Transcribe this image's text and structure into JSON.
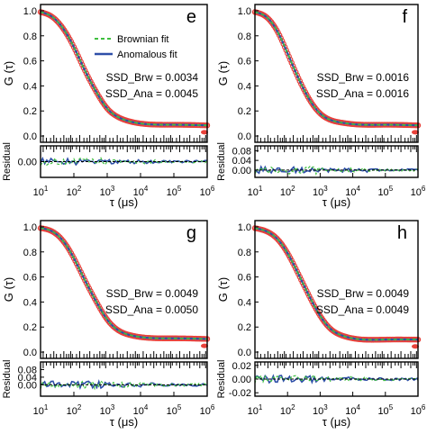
{
  "chart_data": [
    {
      "type": "line",
      "panel_label": "e",
      "legend": {
        "position": "top-right",
        "entries": [
          {
            "name": "Brownian fit",
            "color": "#3fbf3f",
            "style": "dashed"
          },
          {
            "name": "Anomalous fit",
            "color": "#2e4fa8",
            "style": "solid"
          }
        ]
      },
      "annotations": [
        "SSD_Brw = 0.0034",
        "SSD_Ana = 0.0045"
      ],
      "ylabel": "G (τ)",
      "residual_ylabel": "Residual",
      "xlabel": "τ (μs)",
      "x_scale": "log",
      "xlim": [
        10,
        1000000
      ],
      "x_ticks": [
        "10^1",
        "10^2",
        "10^3",
        "10^4",
        "10^5",
        "10^6"
      ],
      "ylim": [
        -0.05,
        1.05
      ],
      "y_ticks": [
        "1.0",
        "0.8",
        "0.6",
        "0.4",
        "0.2",
        "0.0"
      ],
      "residual_ylim": [
        -0.04,
        0.04
      ],
      "residual_ticks": [
        "0.00"
      ],
      "data_color": "#e8413a",
      "x": [
        10,
        20,
        50,
        100,
        200,
        500,
        1000,
        2000,
        5000,
        10000,
        100000,
        1000000
      ],
      "series": [
        {
          "name": "data",
          "values": [
            0.99,
            0.96,
            0.85,
            0.71,
            0.54,
            0.34,
            0.22,
            0.155,
            0.115,
            0.1,
            0.09,
            0.085
          ]
        },
        {
          "name": "Brownian fit",
          "values": [
            0.99,
            0.96,
            0.85,
            0.71,
            0.54,
            0.34,
            0.22,
            0.155,
            0.115,
            0.1,
            0.09,
            0.085
          ]
        },
        {
          "name": "Anomalous fit",
          "values": [
            0.99,
            0.96,
            0.85,
            0.71,
            0.54,
            0.34,
            0.22,
            0.155,
            0.115,
            0.1,
            0.09,
            0.085
          ]
        }
      ]
    },
    {
      "type": "line",
      "panel_label": "f",
      "annotations": [
        "SSD_Brw = 0.0016",
        "SSD_Ana = 0.0016"
      ],
      "ylabel": "G (τ)",
      "residual_ylabel": "Residual",
      "xlabel": "τ (μs)",
      "x_scale": "log",
      "xlim": [
        10,
        1000000
      ],
      "x_ticks": [
        "10^1",
        "10^2",
        "10^3",
        "10^4",
        "10^5",
        "10^6"
      ],
      "ylim": [
        -0.05,
        1.05
      ],
      "y_ticks": [
        "1.0",
        "0.8",
        "0.6",
        "0.4",
        "0.2",
        "0.0"
      ],
      "residual_ylim": [
        -0.03,
        0.1
      ],
      "residual_ticks": [
        "0.08",
        "0.04",
        "0.00"
      ],
      "data_color": "#e8413a",
      "x": [
        10,
        20,
        50,
        100,
        200,
        500,
        1000,
        2000,
        5000,
        10000,
        100000,
        1000000
      ],
      "series": [
        {
          "name": "data",
          "values": [
            0.99,
            0.96,
            0.83,
            0.66,
            0.48,
            0.28,
            0.18,
            0.13,
            0.105,
            0.095,
            0.09,
            0.085
          ]
        },
        {
          "name": "Brownian fit",
          "values": [
            0.99,
            0.96,
            0.83,
            0.66,
            0.48,
            0.28,
            0.18,
            0.13,
            0.105,
            0.095,
            0.09,
            0.085
          ]
        },
        {
          "name": "Anomalous fit",
          "values": [
            0.99,
            0.96,
            0.83,
            0.66,
            0.48,
            0.28,
            0.18,
            0.13,
            0.105,
            0.095,
            0.09,
            0.085
          ]
        }
      ]
    },
    {
      "type": "line",
      "panel_label": "g",
      "annotations": [
        "SSD_Brw = 0.0049",
        "SSD_Ana = 0.0050"
      ],
      "ylabel": "G (τ)",
      "residual_ylabel": "Residual",
      "xlabel": "τ (μs)",
      "x_scale": "log",
      "xlim": [
        10,
        1000000
      ],
      "x_ticks": [
        "10^1",
        "10^2",
        "10^3",
        "10^4",
        "10^5",
        "10^6"
      ],
      "ylim": [
        -0.05,
        1.05
      ],
      "y_ticks": [
        "1.0",
        "0.8",
        "0.6",
        "0.4",
        "0.2",
        "0.0"
      ],
      "residual_ylim": [
        -0.06,
        0.12
      ],
      "residual_ticks": [
        "0.08",
        "0.04",
        "0.00"
      ],
      "data_color": "#e8413a",
      "x": [
        10,
        20,
        50,
        100,
        200,
        500,
        1000,
        2000,
        5000,
        10000,
        100000,
        1000000
      ],
      "series": [
        {
          "name": "data",
          "values": [
            0.99,
            0.97,
            0.88,
            0.75,
            0.59,
            0.39,
            0.26,
            0.18,
            0.135,
            0.12,
            0.11,
            0.105
          ]
        },
        {
          "name": "Brownian fit",
          "values": [
            0.99,
            0.97,
            0.88,
            0.75,
            0.59,
            0.39,
            0.26,
            0.18,
            0.135,
            0.12,
            0.11,
            0.105
          ]
        },
        {
          "name": "Anomalous fit",
          "values": [
            0.99,
            0.97,
            0.88,
            0.75,
            0.59,
            0.39,
            0.26,
            0.18,
            0.135,
            0.12,
            0.11,
            0.105
          ]
        }
      ]
    },
    {
      "type": "line",
      "panel_label": "h",
      "annotations": [
        "SSD_Brw = 0.0049",
        "SSD_Ana = 0.0049"
      ],
      "ylabel": "G (τ)",
      "residual_ylabel": "Residual",
      "xlabel": "τ (μs)",
      "x_scale": "log",
      "xlim": [
        10,
        1000000
      ],
      "x_ticks": [
        "10^1",
        "10^2",
        "10^3",
        "10^4",
        "10^5",
        "10^6"
      ],
      "ylim": [
        -0.05,
        1.05
      ],
      "y_ticks": [
        "1.0",
        "0.8",
        "0.6",
        "0.4",
        "0.2",
        "0.0"
      ],
      "residual_ylim": [
        -0.025,
        0.025
      ],
      "residual_ticks": [
        "0.02",
        "0.00",
        "-0.02"
      ],
      "data_color": "#e8413a",
      "x": [
        10,
        20,
        50,
        100,
        200,
        500,
        1000,
        2000,
        5000,
        10000,
        100000,
        1000000
      ],
      "series": [
        {
          "name": "data",
          "values": [
            0.99,
            0.97,
            0.9,
            0.79,
            0.64,
            0.43,
            0.29,
            0.19,
            0.13,
            0.11,
            0.1,
            0.1
          ]
        },
        {
          "name": "Brownian fit",
          "values": [
            0.99,
            0.97,
            0.9,
            0.79,
            0.64,
            0.43,
            0.29,
            0.19,
            0.13,
            0.11,
            0.1,
            0.1
          ]
        },
        {
          "name": "Anomalous fit",
          "values": [
            0.99,
            0.97,
            0.9,
            0.79,
            0.64,
            0.43,
            0.29,
            0.19,
            0.13,
            0.11,
            0.1,
            0.1
          ]
        }
      ]
    }
  ]
}
